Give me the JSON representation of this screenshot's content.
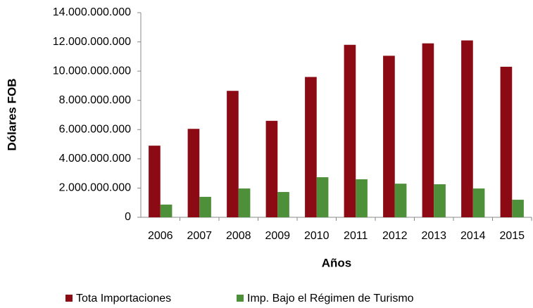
{
  "chart_data": {
    "type": "bar",
    "categories": [
      "2006",
      "2007",
      "2008",
      "2009",
      "2010",
      "2011",
      "2012",
      "2013",
      "2014",
      "2015"
    ],
    "series": [
      {
        "name": "Tota Importaciones",
        "color": "#8b0a14",
        "values": [
          4900000000,
          6050000000,
          8650000000,
          6600000000,
          9600000000,
          11800000000,
          11050000000,
          11900000000,
          12100000000,
          10300000000
        ]
      },
      {
        "name": "Imp. Bajo el Régimen de Turismo",
        "color": "#4e8f3a",
        "values": [
          870000000,
          1400000000,
          1970000000,
          1730000000,
          2740000000,
          2600000000,
          2300000000,
          2260000000,
          1970000000,
          1200000000
        ]
      }
    ],
    "y_label": "Dólares FOB",
    "x_label": "Años",
    "ylim": [
      0,
      14000000000
    ],
    "yticks": [
      0,
      {
        "value": 2000000000,
        "label": "2.000.000.000"
      },
      {
        "value": 4000000000,
        "label": "4.000.000.000"
      },
      {
        "value": 6000000000,
        "label": "6.000.000.000"
      },
      {
        "value": 8000000000,
        "label": "8.000.000.000"
      },
      {
        "value": 10000000000,
        "label": "10.000.000.000"
      },
      {
        "value": 12000000000,
        "label": "12.000.000.000"
      },
      {
        "value": 14000000000,
        "label": "14.000.000.000"
      }
    ],
    "grid": false,
    "legend": "bottom"
  }
}
